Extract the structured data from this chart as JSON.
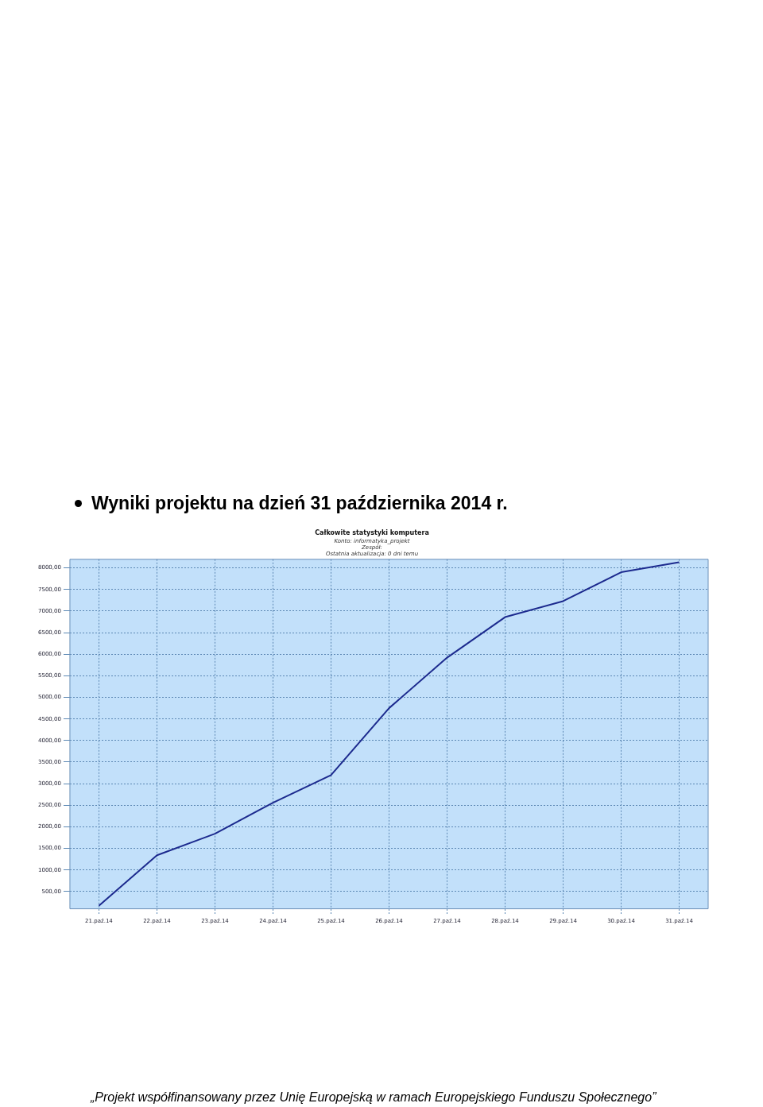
{
  "chart_data": {
    "type": "line",
    "title": "Całkowite statystyki komputera",
    "subtitle": "Konto: informatyka_projekt\nZespół:\nOstatnia aktualizacja: 0 dni temu",
    "annotations": [
      "Wyniki projektu na dzień 31 października 2014 r.",
      "„Projekt współfinansowany przez Unię Europejską w ramach Europejskiego Funduszu Społecznego”"
    ],
    "categories": [
      "21.paź.14",
      "22.paź.14",
      "23.paź.14",
      "24.paź.14",
      "25.paź.14",
      "26.paź.14",
      "27.paź.14",
      "28.paź.14",
      "29.paź.14",
      "30.paź.14",
      "31.paź.14"
    ],
    "series": [
      {
        "color": "#1c2a8e",
        "values": [
          170,
          1340,
          1840,
          2560,
          3200,
          4750,
          5920,
          6860,
          7230,
          7900,
          8130
        ]
      }
    ],
    "ylim": [
      100,
      8200
    ],
    "yticks": [
      {
        "value": 500,
        "label": "500,00"
      },
      {
        "value": 1000,
        "label": "1000,00"
      },
      {
        "value": 1500,
        "label": "1500,00"
      },
      {
        "value": 2000,
        "label": "2000,00"
      },
      {
        "value": 2500,
        "label": "2500,00"
      },
      {
        "value": 3000,
        "label": "3000,00"
      },
      {
        "value": 3500,
        "label": "3500,00"
      },
      {
        "value": 4000,
        "label": "4000,00"
      },
      {
        "value": 4500,
        "label": "4500,00"
      },
      {
        "value": 5000,
        "label": "5000,00"
      },
      {
        "value": 5500,
        "label": "5500,00"
      },
      {
        "value": 6000,
        "label": "6000,00"
      },
      {
        "value": 6500,
        "label": "6500,00"
      },
      {
        "value": 7000,
        "label": "7000,00"
      },
      {
        "value": 7500,
        "label": "7500,00"
      },
      {
        "value": 8000,
        "label": "8000,00"
      }
    ],
    "grid": true,
    "legend": false,
    "marker": "none",
    "line_style": "solid"
  }
}
